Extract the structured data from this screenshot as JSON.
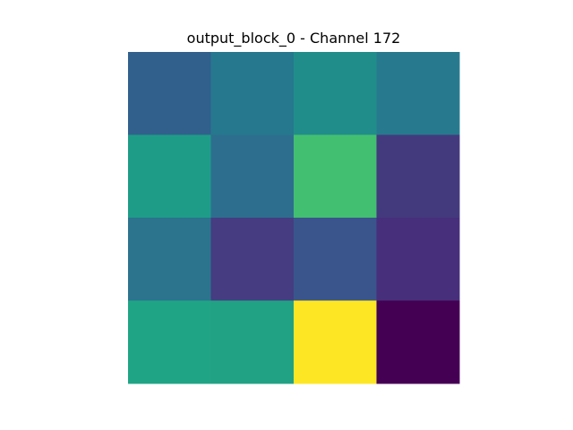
{
  "chart_data": {
    "type": "heatmap",
    "title": "output_block_0 - Channel 172",
    "xlabel": "",
    "ylabel": "",
    "rows": 4,
    "cols": 4,
    "axes_visible": false,
    "grid": false,
    "colormap": "viridis",
    "values": [
      [
        0.3,
        0.43,
        0.52,
        0.41
      ],
      [
        0.58,
        0.37,
        0.74,
        0.14
      ],
      [
        0.42,
        0.16,
        0.25,
        0.11
      ],
      [
        0.62,
        0.61,
        1.0,
        0.0
      ]
    ],
    "cell_colors": [
      [
        "#31608d",
        "#26788e",
        "#218d8a",
        "#277a8e"
      ],
      [
        "#1e9c88",
        "#2d6e8e",
        "#43bf71",
        "#433a7e"
      ],
      [
        "#2c738e",
        "#453c82",
        "#39558b",
        "#472f7c"
      ],
      [
        "#20a486",
        "#22a284",
        "#fde725",
        "#440154"
      ]
    ]
  }
}
